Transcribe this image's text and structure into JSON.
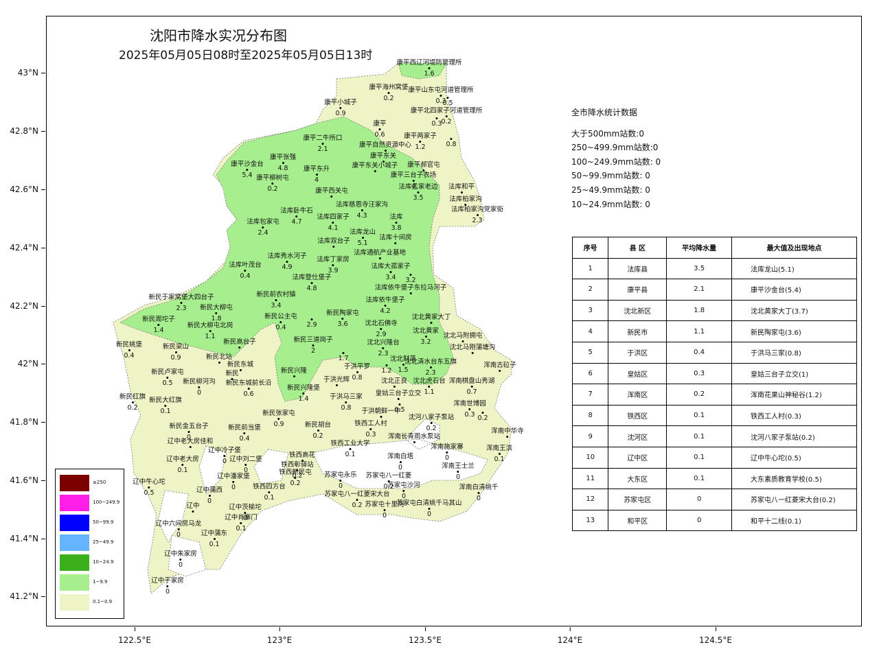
{
  "title": "沈阳市降水实况分布图",
  "subtitle": "2025年05月05日08时至2025年05月05日13时",
  "lat_labels": [
    "43°N",
    "42.8°N",
    "42.6°N",
    "42.4°N",
    "42.2°N",
    "42°N",
    "41.8°N",
    "41.6°N",
    "41.4°N",
    "41.2°N"
  ],
  "lon_labels": [
    "122.5°E",
    "123°E",
    "123.5°E",
    "124°E",
    "124.5°E"
  ],
  "stats": {
    "heading": "全市降水统计数据",
    "lines": [
      "大于500mm站数:0",
      "250~499.9mm站数:0",
      "100~249.9mm站数: 0",
      "50~99.9mm站数: 0",
      "25~49.9mm站数: 0",
      "10~24.9mm站数: 0"
    ]
  },
  "table": {
    "headers": [
      "序号",
      "县 区",
      "平均降水量",
      "最大值及出现地点"
    ],
    "rows": [
      [
        "1",
        "法库县",
        "3.5",
        "法库龙山(5.1)"
      ],
      [
        "2",
        "康平县",
        "2.1",
        "康平沙金台(5.4)"
      ],
      [
        "3",
        "沈北新区",
        "1.8",
        "沈北黄家大丁(3.7)"
      ],
      [
        "4",
        "新民市",
        "1.1",
        "新民陶家屯(3.6)"
      ],
      [
        "5",
        "于洪区",
        "0.4",
        "于洪马三家(0.8)"
      ],
      [
        "6",
        "皇姑区",
        "0.3",
        "皇姑三台子立交(1)"
      ],
      [
        "7",
        "浑南区",
        "0.2",
        "浑南花果山神秘谷(1.2)"
      ],
      [
        "8",
        "铁西区",
        "0.1",
        "铁西工人村(0.3)"
      ],
      [
        "9",
        "沈河区",
        "0.1",
        "沈河八家子泵站(0.2)"
      ],
      [
        "10",
        "辽中区",
        "0.1",
        "辽中牛心坨(0.5)"
      ],
      [
        "11",
        "大东区",
        "0.1",
        "大东素质教育学校(0.5)"
      ],
      [
        "12",
        "苏家屯区",
        "0",
        "苏家屯八一红菱宋大台(0.2)"
      ],
      [
        "13",
        "和平区",
        "0",
        "和平十二线(0.1)"
      ]
    ]
  },
  "legend": [
    {
      "label": "≥250",
      "color": "#7a0000"
    },
    {
      "label": "100~249.9",
      "color": "#ff1ee8"
    },
    {
      "label": "50~99.9",
      "color": "#0000ff"
    },
    {
      "label": "25~49.9",
      "color": "#64b4ff"
    },
    {
      "label": "10~24.9",
      "color": "#3cb01a"
    },
    {
      "label": "1~9.9",
      "color": "#a6ee8e"
    },
    {
      "label": "0.1~0.9",
      "color": "#eef4c6"
    }
  ],
  "stations": [
    {
      "n": "康平西辽河堤防管理所",
      "v": "1.6"
    },
    {
      "n": "康平海州窝堡",
      "v": "0.2"
    },
    {
      "n": "康平山东屯河道管理所",
      "v": "0.3"
    },
    {
      "n": "康平小城子",
      "v": "0.9"
    },
    {
      "n": "",
      "v": "0.5"
    },
    {
      "n": "康平北四家子河道管理所",
      "v": "0.2"
    },
    {
      "n": "康平",
      "v": "0.6"
    },
    {
      "n": "",
      "v": "0.3"
    },
    {
      "n": "康平两家子",
      "v": "1.2"
    },
    {
      "n": "康平二牛所口",
      "v": "2.1"
    },
    {
      "n": "康平自然资源中心",
      "v": ""
    },
    {
      "n": "",
      "v": "0.8"
    },
    {
      "n": "康平张强",
      "v": "4.8"
    },
    {
      "n": "康平东关",
      "v": ""
    },
    {
      "n": "康平沙金台",
      "v": "5.4"
    },
    {
      "n": "康平东升",
      "v": "4"
    },
    {
      "n": "康平东关小城子",
      "v": ""
    },
    {
      "n": "康平郝官屯",
      "v": ""
    },
    {
      "n": "康平柳树屯",
      "v": "0.2"
    },
    {
      "n": "康平三台子农场",
      "v": "4"
    },
    {
      "n": "康平西关屯",
      "v": ""
    },
    {
      "n": "法库孟家老边",
      "v": "3.5"
    },
    {
      "n": "法库和平",
      "v": ""
    },
    {
      "n": "法库柏家沟",
      "v": ""
    },
    {
      "n": "法库慈恩寺汪家沟",
      "v": "4.3"
    },
    {
      "n": "法库卧牛石",
      "v": "4.7"
    },
    {
      "n": "法库四家子",
      "v": "4.1"
    },
    {
      "n": "法库",
      "v": "3.8"
    },
    {
      "n": "法库柏家沟党家街",
      "v": "2.3"
    },
    {
      "n": "法库包家屯",
      "v": "2.4"
    },
    {
      "n": "法库龙山",
      "v": "5.1"
    },
    {
      "n": "法库十间房",
      "v": ""
    },
    {
      "n": "法库双台子",
      "v": ""
    },
    {
      "n": "法库通航产业基地",
      "v": ""
    },
    {
      "n": "法库秀水河子",
      "v": "4.9"
    },
    {
      "n": "法库丁家房",
      "v": "3.9"
    },
    {
      "n": "法库叶茂台",
      "v": "0.4"
    },
    {
      "n": "法库大孤家子",
      "v": "3.4"
    },
    {
      "n": "",
      "v": "3.2"
    },
    {
      "n": "法库登仕堡子",
      "v": "4.8"
    },
    {
      "n": "法库依牛堡子东拉马河子",
      "v": ""
    },
    {
      "n": "新民于家窝堡大四台子",
      "v": "2.3"
    },
    {
      "n": "新民前农村镇",
      "v": "3.4"
    },
    {
      "n": "法库依牛堡子",
      "v": "4.2"
    },
    {
      "n": "新民大柳屯",
      "v": "1.8"
    },
    {
      "n": "新民陶家屯",
      "v": "3.6"
    },
    {
      "n": "沈北黄家大丁",
      "v": ""
    },
    {
      "n": "新民周坨子",
      "v": "1.4"
    },
    {
      "n": "新民大柳屯北岗",
      "v": "1.1"
    },
    {
      "n": "新民公主屯",
      "v": "0.4"
    },
    {
      "n": "",
      "v": "2.9"
    },
    {
      "n": "沈北石佛寺",
      "v": "2.9"
    },
    {
      "n": "沈北黄家",
      "v": "3.2"
    },
    {
      "n": "沈北马附拥屯",
      "v": ""
    },
    {
      "n": "新民姚堡",
      "v": "0.4"
    },
    {
      "n": "新民梁山",
      "v": "0.9"
    },
    {
      "n": "新民高台子",
      "v": ""
    },
    {
      "n": "新民三道岗子",
      "v": "2"
    },
    {
      "n": "沈北兴隆台",
      "v": "2.3"
    },
    {
      "n": "沈北马刚蒲塘沟",
      "v": ""
    },
    {
      "n": "新民北站",
      "v": ""
    },
    {
      "n": "",
      "v": "1.7"
    },
    {
      "n": "沈北财落",
      "v": "1.5"
    },
    {
      "n": "沈北清水台东五旗",
      "v": "2.3"
    },
    {
      "n": "浑南古砬子",
      "v": ""
    },
    {
      "n": "新民东城",
      "v": ""
    },
    {
      "n": "于洪平罗",
      "v": "0.8"
    },
    {
      "n": "",
      "v": "1.2"
    },
    {
      "n": "新民卢家屯",
      "v": "0.5"
    },
    {
      "n": "新民",
      "v": ""
    },
    {
      "n": "新民兴隆",
      "v": ""
    },
    {
      "n": "于洪光辉",
      "v": ""
    },
    {
      "n": "沈北正良",
      "v": ""
    },
    {
      "n": "沈北虎石台",
      "v": "1.1"
    },
    {
      "n": "浑南棋盘山秀湖",
      "v": "0.7"
    },
    {
      "n": "新民柳河沟",
      "v": "0"
    },
    {
      "n": "新民东城前长沿",
      "v": "0.6"
    },
    {
      "n": "新民兴隆堡",
      "v": "1.4"
    },
    {
      "n": "新民红旗",
      "v": "0.2"
    },
    {
      "n": "新民大红旗",
      "v": "0.1"
    },
    {
      "n": "于洪马三家",
      "v": "0.8"
    },
    {
      "n": "皇姑三台子立交",
      "v": ""
    },
    {
      "n": "浑南世博园",
      "v": "0.3"
    },
    {
      "n": "",
      "v": "0.2"
    },
    {
      "n": "",
      "v": "0.5"
    },
    {
      "n": "新民张家屯",
      "v": "0.9"
    },
    {
      "n": "于洪朝鲜一中",
      "v": ""
    },
    {
      "n": "沈河八家子泵站",
      "v": "0.2"
    },
    {
      "n": "浑南中华寺",
      "v": ""
    },
    {
      "n": "新民金五台子",
      "v": "0"
    },
    {
      "n": "新民前当堡",
      "v": "0.4"
    },
    {
      "n": "新民胡台",
      "v": "0.2"
    },
    {
      "n": "铁西工人村",
      "v": "0.3"
    },
    {
      "n": "浑南长青雨水泵站",
      "v": ""
    },
    {
      "n": "辽中冷子堡",
      "v": "0"
    },
    {
      "n": "辽中老大房佳和",
      "v": ""
    },
    {
      "n": "铁西工业大学",
      "v": "0.1"
    },
    {
      "n": "浑南施家寨",
      "v": "0"
    },
    {
      "n": "浑南王滨",
      "v": "0.1"
    },
    {
      "n": "辽中刘二堡",
      "v": "0"
    },
    {
      "n": "辽中老大房",
      "v": "0.1"
    },
    {
      "n": "铁西高花",
      "v": ""
    },
    {
      "n": "铁西彰驿站",
      "v": "0.2"
    },
    {
      "n": "浑南白塔",
      "v": "0"
    },
    {
      "n": "浑南王士兰",
      "v": "0"
    },
    {
      "n": "辽中牛心坨",
      "v": "0.5"
    },
    {
      "n": "辽中潘家堡",
      "v": "0"
    },
    {
      "n": "铁西新民屯",
      "v": "0.2"
    },
    {
      "n": "苏家屯永乐",
      "v": "0"
    },
    {
      "n": "苏家屯八一红菱",
      "v": "0.2"
    },
    {
      "n": "苏家屯沙河",
      "v": "0"
    },
    {
      "n": "浑南白清姚千",
      "v": "0"
    },
    {
      "n": "辽中蒲西",
      "v": "0"
    },
    {
      "n": "铁西四方台",
      "v": "0.1"
    },
    {
      "n": "苏家屯八一红菱宋大台",
      "v": "0.2"
    },
    {
      "n": "辽中",
      "v": ""
    },
    {
      "n": "辽中茨榆坨",
      "v": "0"
    },
    {
      "n": "苏家屯十里河",
      "v": "0"
    },
    {
      "n": "苏家屯白清姚千马其山",
      "v": "0"
    },
    {
      "n": "辽中肖寨门",
      "v": "0.1"
    },
    {
      "n": "辽中六间房马龙",
      "v": "0"
    },
    {
      "n": "辽中蒲东",
      "v": "0.1"
    },
    {
      "n": "辽中朱家房",
      "v": "0"
    },
    {
      "n": "辽中于家房",
      "v": "0"
    }
  ]
}
